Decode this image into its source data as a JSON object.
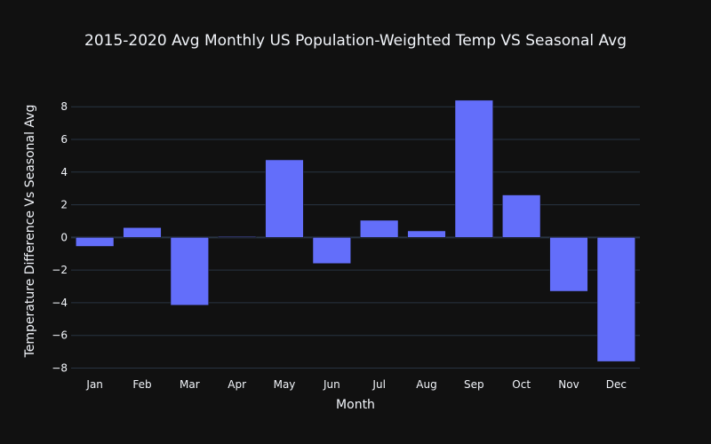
{
  "chart_data": {
    "type": "bar",
    "title": "2015-2020 Avg Monthly US Population-Weighted Temp VS Seasonal Avg",
    "xlabel": "Month",
    "ylabel": "Temperature Difference Vs Seasonal Avg",
    "categories": [
      "Jan",
      "Feb",
      "Mar",
      "Apr",
      "May",
      "Jun",
      "Jul",
      "Aug",
      "Sep",
      "Oct",
      "Nov",
      "Dec"
    ],
    "values": [
      -0.55,
      0.6,
      -4.15,
      0.05,
      4.75,
      -1.6,
      1.05,
      0.4,
      8.4,
      2.6,
      -3.3,
      -7.6
    ],
    "ylim": [
      -8.3,
      9.1
    ],
    "yticks": [
      -8,
      -6,
      -4,
      -2,
      0,
      2,
      4,
      6,
      8
    ],
    "ytick_labels": [
      "−8",
      "−6",
      "−4",
      "−2",
      "0",
      "2",
      "4",
      "6",
      "8"
    ],
    "grid": true,
    "bar_color": "#636efa",
    "background_color": "#111111"
  }
}
